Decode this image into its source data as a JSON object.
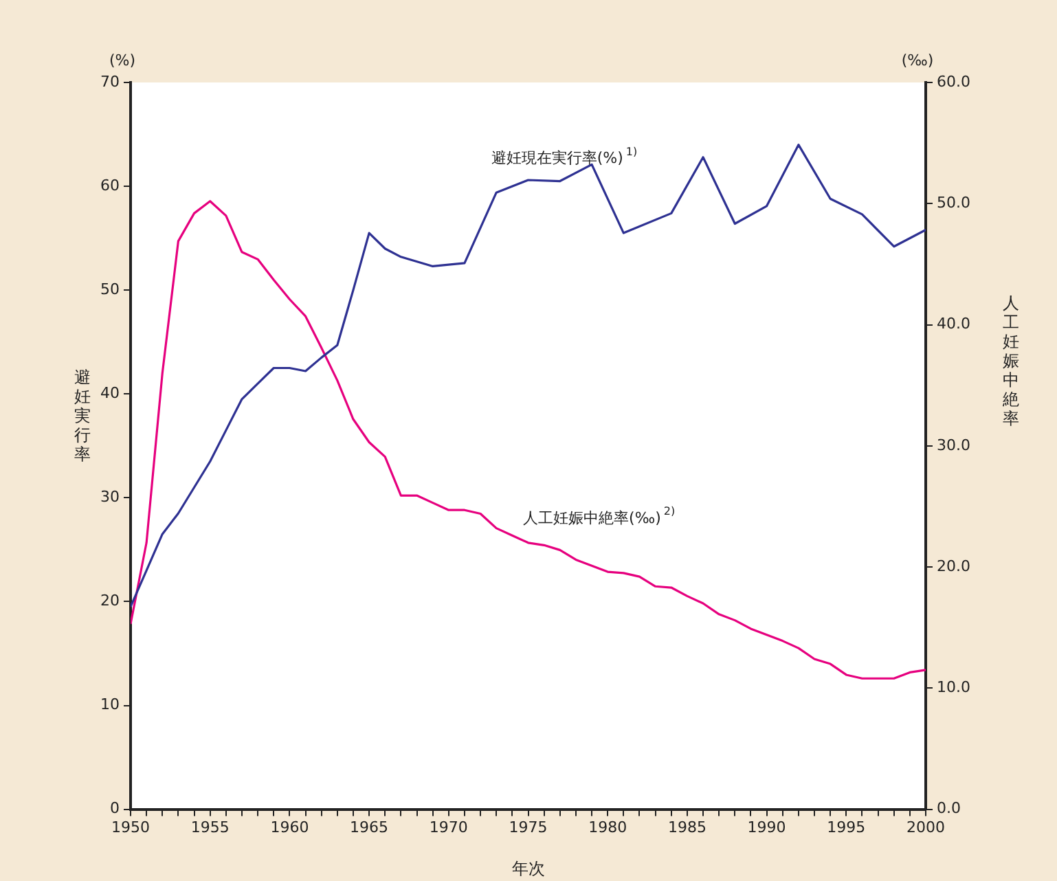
{
  "chart_data": {
    "type": "line",
    "xlabel": "年次",
    "ylabel": "避妊実行率",
    "y2label": "人工妊娠中絶率",
    "annotations": [
      "(%)",
      "(‰)"
    ],
    "xlim": [
      1950,
      2000
    ],
    "xticks": [
      1950,
      {
        "value": 1951,
        "label": null
      },
      {
        "value": 1952,
        "label": null
      },
      {
        "value": 1953,
        "label": null
      },
      {
        "value": 1954,
        "label": null
      },
      1955,
      {
        "value": 1956,
        "label": null
      },
      {
        "value": 1957,
        "label": null
      },
      {
        "value": 1958,
        "label": null
      },
      {
        "value": 1959,
        "label": null
      },
      1960,
      {
        "value": 1961,
        "label": null
      },
      {
        "value": 1962,
        "label": null
      },
      {
        "value": 1963,
        "label": null
      },
      {
        "value": 1964,
        "label": null
      },
      1965,
      {
        "value": 1966,
        "label": null
      },
      {
        "value": 1967,
        "label": null
      },
      {
        "value": 1968,
        "label": null
      },
      {
        "value": 1969,
        "label": null
      },
      1970,
      {
        "value": 1971,
        "label": null
      },
      {
        "value": 1972,
        "label": null
      },
      {
        "value": 1973,
        "label": null
      },
      {
        "value": 1974,
        "label": null
      },
      1975,
      {
        "value": 1976,
        "label": null
      },
      {
        "value": 1977,
        "label": null
      },
      {
        "value": 1978,
        "label": null
      },
      {
        "value": 1979,
        "label": null
      },
      1980,
      {
        "value": 1981,
        "label": null
      },
      {
        "value": 1982,
        "label": null
      },
      {
        "value": 1983,
        "label": null
      },
      {
        "value": 1984,
        "label": null
      },
      1985,
      {
        "value": 1986,
        "label": null
      },
      {
        "value": 1987,
        "label": null
      },
      {
        "value": 1988,
        "label": null
      },
      {
        "value": 1989,
        "label": null
      },
      1990,
      {
        "value": 1991,
        "label": null
      },
      {
        "value": 1992,
        "label": null
      },
      {
        "value": 1993,
        "label": null
      },
      {
        "value": 1994,
        "label": null
      },
      1995,
      {
        "value": 1996,
        "label": null
      },
      {
        "value": 1997,
        "label": null
      },
      {
        "value": 1998,
        "label": null
      },
      {
        "value": 1999,
        "label": null
      },
      2000
    ],
    "ylim": [
      0,
      70
    ],
    "yticks": [
      0,
      10,
      20,
      30,
      40,
      50,
      60,
      70
    ],
    "y2lim": [
      0,
      60
    ],
    "y2ticks": [
      {
        "value": 0,
        "label": "0.0"
      },
      {
        "value": 10,
        "label": "10.0"
      },
      {
        "value": 20,
        "label": "20.0"
      },
      {
        "value": 30,
        "label": "30.0"
      },
      {
        "value": 40,
        "label": "40.0"
      },
      {
        "value": 50,
        "label": "50.0"
      },
      {
        "value": 60,
        "label": "60.0"
      }
    ],
    "grid": false,
    "legend": false,
    "marker": "none",
    "line_style": "solid",
    "series": [
      {
        "name": "避妊現在実行率(%)$^{1)}$",
        "color": "#2e3192",
        "x": [
          1950,
          1951,
          1952,
          1953,
          1954,
          1955,
          1956,
          1957,
          1958,
          1959,
          1960,
          1961,
          1962,
          1963,
          1964,
          1965,
          1966,
          1967,
          1969,
          1971,
          1973,
          1975,
          1977,
          1979,
          1981,
          1984,
          1986,
          1988,
          1990,
          1992,
          1994,
          1996,
          1998,
          2000
        ],
        "values": [
          19.5,
          23,
          26.5,
          28.5,
          31,
          33.5,
          36.5,
          39.5,
          41,
          42.5,
          42.5,
          42.2,
          43.5,
          44.7,
          50,
          55.5,
          54,
          53.2,
          52.3,
          52.6,
          59.4,
          60.6,
          60.5,
          62.1,
          55.5,
          57.4,
          62.8,
          56.4,
          58.1,
          64,
          58.8,
          57.3,
          54.2,
          55.8
        ]
      },
      {
        "name": "人工妊娠中絶率(‰)$^{2)}$",
        "color": "#e6007e",
        "axis": "y2",
        "x": [
          1950,
          1951,
          1952,
          1953,
          1954,
          1955,
          1956,
          1957,
          1958,
          1959,
          1960,
          1961,
          1962,
          1963,
          1964,
          1965,
          1966,
          1967,
          1968,
          1969,
          1970,
          1971,
          1972,
          1973,
          1974,
          1975,
          1976,
          1977,
          1978,
          1979,
          1980,
          1981,
          1982,
          1983,
          1984,
          1985,
          1986,
          1987,
          1988,
          1989,
          1990,
          1991,
          1992,
          1993,
          1994,
          1995,
          1996,
          1997,
          1998,
          1999,
          2000
        ],
        "values": [
          15.3,
          22,
          36,
          46.9,
          49.2,
          50.2,
          49,
          46,
          45.4,
          43.7,
          42.1,
          40.7,
          38.1,
          35.4,
          32.2,
          30.3,
          29.1,
          25.9,
          25.9,
          25.3,
          24.7,
          24.7,
          24.4,
          23.2,
          22.6,
          22,
          21.8,
          21.4,
          20.6,
          20.1,
          19.6,
          19.5,
          19.2,
          18.4,
          18.3,
          17.6,
          17,
          16.1,
          15.6,
          14.9,
          14.4,
          13.9,
          13.3,
          12.4,
          12,
          11.1,
          10.8,
          10.8,
          10.8,
          11.3,
          11.5
        ]
      }
    ]
  }
}
